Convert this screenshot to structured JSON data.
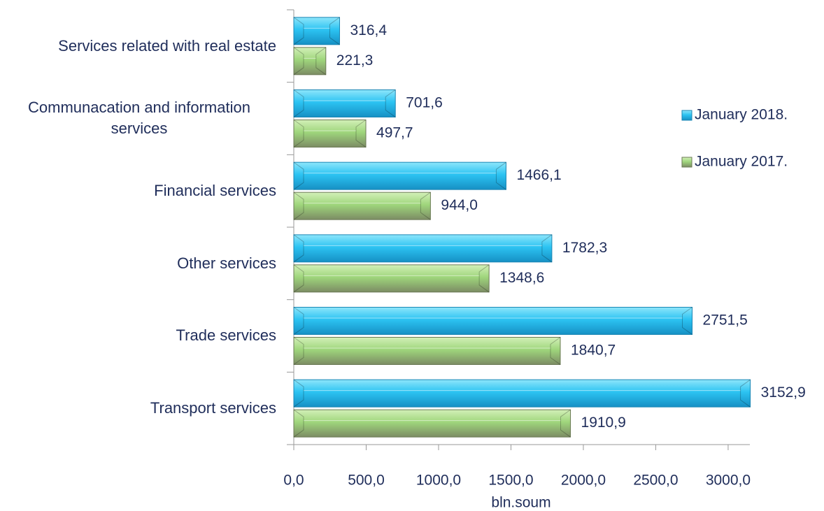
{
  "chart_data": {
    "type": "bar",
    "orientation": "horizontal",
    "categories": [
      "Services related with real estate",
      "Communacation and information services",
      "Financial services",
      "Other services",
      "Trade services",
      "Transport services"
    ],
    "series": [
      {
        "name": "January 2018.",
        "color": "#22b4e6",
        "values": [
          316.4,
          701.6,
          1466.1,
          1782.3,
          2751.5,
          3152.9
        ],
        "value_labels": [
          "316,4",
          "701,6",
          "1466,1",
          "1782,3",
          "2751,5",
          "3152,9"
        ]
      },
      {
        "name": "January 2017.",
        "color": "#93b57a",
        "values": [
          221.3,
          497.7,
          944.0,
          1348.6,
          1840.7,
          1910.9
        ],
        "value_labels": [
          "221,3",
          "497,7",
          "944,0",
          "1348,6",
          "1840,7",
          "1910,9"
        ]
      }
    ],
    "xlabel": "bln.soum",
    "xlim": [
      0,
      3150
    ],
    "xticks": [
      {
        "value": 0,
        "label": "0,0"
      },
      {
        "value": 500,
        "label": "500,0"
      },
      {
        "value": 1000,
        "label": "1000,0"
      },
      {
        "value": 1500,
        "label": "1500,0"
      },
      {
        "value": 2000,
        "label": "2000,0"
      },
      {
        "value": 2500,
        "label": "2500,0"
      },
      {
        "value": 3000,
        "label": "3000,0"
      }
    ],
    "grid": false,
    "legend": "right"
  }
}
